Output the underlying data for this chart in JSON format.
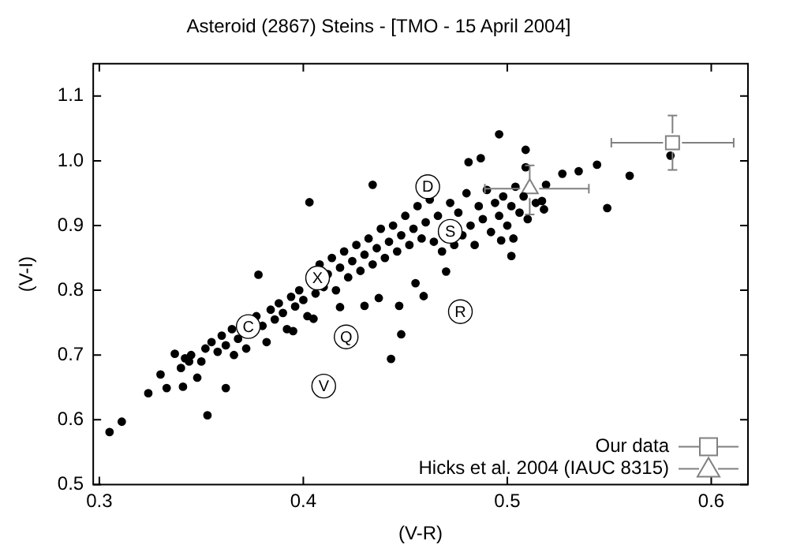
{
  "chart_data": {
    "type": "scatter",
    "title": "Asteroid (2867) Steins - [TMO - 15 April 2004]",
    "xlabel": "(V-R)",
    "ylabel": "(V-I)",
    "xlim": [
      0.297,
      0.618
    ],
    "ylim": [
      0.5,
      1.15
    ],
    "xticks": [
      0.3,
      0.4,
      0.5,
      0.6
    ],
    "yticks": [
      0.5,
      0.6,
      0.7,
      0.8,
      0.9,
      {
        "value": 1,
        "label": "1.0"
      },
      1.1
    ],
    "grid": false,
    "legend": "bottom right",
    "series": [
      {
        "color": "#000000",
        "marker": "circle",
        "x": [
          0.305,
          0.311,
          0.324,
          0.333,
          0.341,
          0.353,
          0.362,
          0.337,
          0.344,
          0.378,
          0.395,
          0.418,
          0.43,
          0.437,
          0.447,
          0.448,
          0.443,
          0.405,
          0.403,
          0.434,
          0.496,
          0.509,
          0.509,
          0.527,
          0.535,
          0.544,
          0.56,
          0.58,
          0.549,
          0.519,
          0.517,
          0.502,
          0.503,
          0.497,
          0.487,
          0.481,
          0.459,
          0.47,
          0.455,
          0.355,
          0.358,
          0.36,
          0.362,
          0.365,
          0.366,
          0.368,
          0.372,
          0.377,
          0.38,
          0.382,
          0.384,
          0.386,
          0.388,
          0.39,
          0.392,
          0.394,
          0.396,
          0.398,
          0.4,
          0.402,
          0.406,
          0.408,
          0.41,
          0.412,
          0.414,
          0.416,
          0.418,
          0.42,
          0.422,
          0.424,
          0.426,
          0.428,
          0.43,
          0.432,
          0.434,
          0.436,
          0.438,
          0.44,
          0.442,
          0.444,
          0.446,
          0.448,
          0.45,
          0.452,
          0.454,
          0.456,
          0.458,
          0.46,
          0.462,
          0.464,
          0.466,
          0.468,
          0.472,
          0.474,
          0.476,
          0.478,
          0.48,
          0.482,
          0.484,
          0.486,
          0.488,
          0.49,
          0.492,
          0.494,
          0.496,
          0.498,
          0.5,
          0.502,
          0.504,
          0.506,
          0.508,
          0.51,
          0.514,
          0.518,
          0.34,
          0.345,
          0.348,
          0.35,
          0.352,
          0.342,
          0.33
        ],
        "values": [
          0.581,
          0.597,
          0.641,
          0.649,
          0.651,
          0.607,
          0.649,
          0.702,
          0.69,
          0.824,
          0.737,
          0.774,
          0.776,
          0.788,
          0.776,
          0.732,
          0.694,
          0.756,
          0.936,
          0.963,
          1.041,
          1.017,
          0.99,
          0.98,
          0.984,
          0.994,
          0.977,
          1.008,
          0.927,
          0.963,
          0.938,
          0.853,
          0.88,
          0.877,
          1.004,
          0.998,
          0.791,
          0.829,
          0.811,
          0.72,
          0.705,
          0.73,
          0.715,
          0.74,
          0.7,
          0.725,
          0.71,
          0.76,
          0.745,
          0.72,
          0.77,
          0.755,
          0.78,
          0.765,
          0.74,
          0.79,
          0.775,
          0.8,
          0.785,
          0.76,
          0.795,
          0.84,
          0.805,
          0.825,
          0.85,
          0.8,
          0.835,
          0.86,
          0.82,
          0.845,
          0.87,
          0.83,
          0.855,
          0.88,
          0.84,
          0.865,
          0.895,
          0.85,
          0.875,
          0.9,
          0.86,
          0.885,
          0.915,
          0.87,
          0.895,
          0.93,
          0.88,
          0.905,
          0.94,
          0.875,
          0.915,
          0.86,
          0.935,
          0.87,
          0.92,
          0.885,
          0.95,
          0.9,
          0.87,
          0.93,
          0.91,
          0.955,
          0.89,
          0.935,
          0.915,
          0.945,
          0.9,
          0.93,
          0.96,
          0.92,
          0.945,
          0.91,
          0.935,
          0.925,
          0.68,
          0.7,
          0.665,
          0.69,
          0.71,
          0.695,
          0.67
        ]
      },
      {
        "name": "Our data",
        "color": "#808080",
        "marker": "square",
        "x": [
          0.581
        ],
        "values": [
          1.028
        ],
        "errors": [
          [
            0.986,
            1.07
          ]
        ],
        "xerrors": [
          [
            0.551,
            0.611
          ]
        ]
      },
      {
        "name": "Hicks et al. 2004 (IAUC 8315)",
        "color": "#808080",
        "marker": "triangle",
        "x": [
          0.511
        ],
        "values": [
          0.957
        ],
        "errors": [
          [
            0.917,
            0.993
          ]
        ],
        "xerrors": [
          [
            0.489,
            0.54
          ]
        ]
      }
    ],
    "annotations": [
      {
        "text": "D",
        "x": 0.461,
        "y": 0.96
      },
      {
        "text": "S",
        "x": 0.472,
        "y": 0.891
      },
      {
        "text": "X",
        "x": 0.407,
        "y": 0.819
      },
      {
        "text": "C",
        "x": 0.373,
        "y": 0.744
      },
      {
        "text": "Q",
        "x": 0.421,
        "y": 0.728
      },
      {
        "text": "V",
        "x": 0.41,
        "y": 0.652
      },
      {
        "text": "R",
        "x": 0.477,
        "y": 0.767
      }
    ]
  }
}
